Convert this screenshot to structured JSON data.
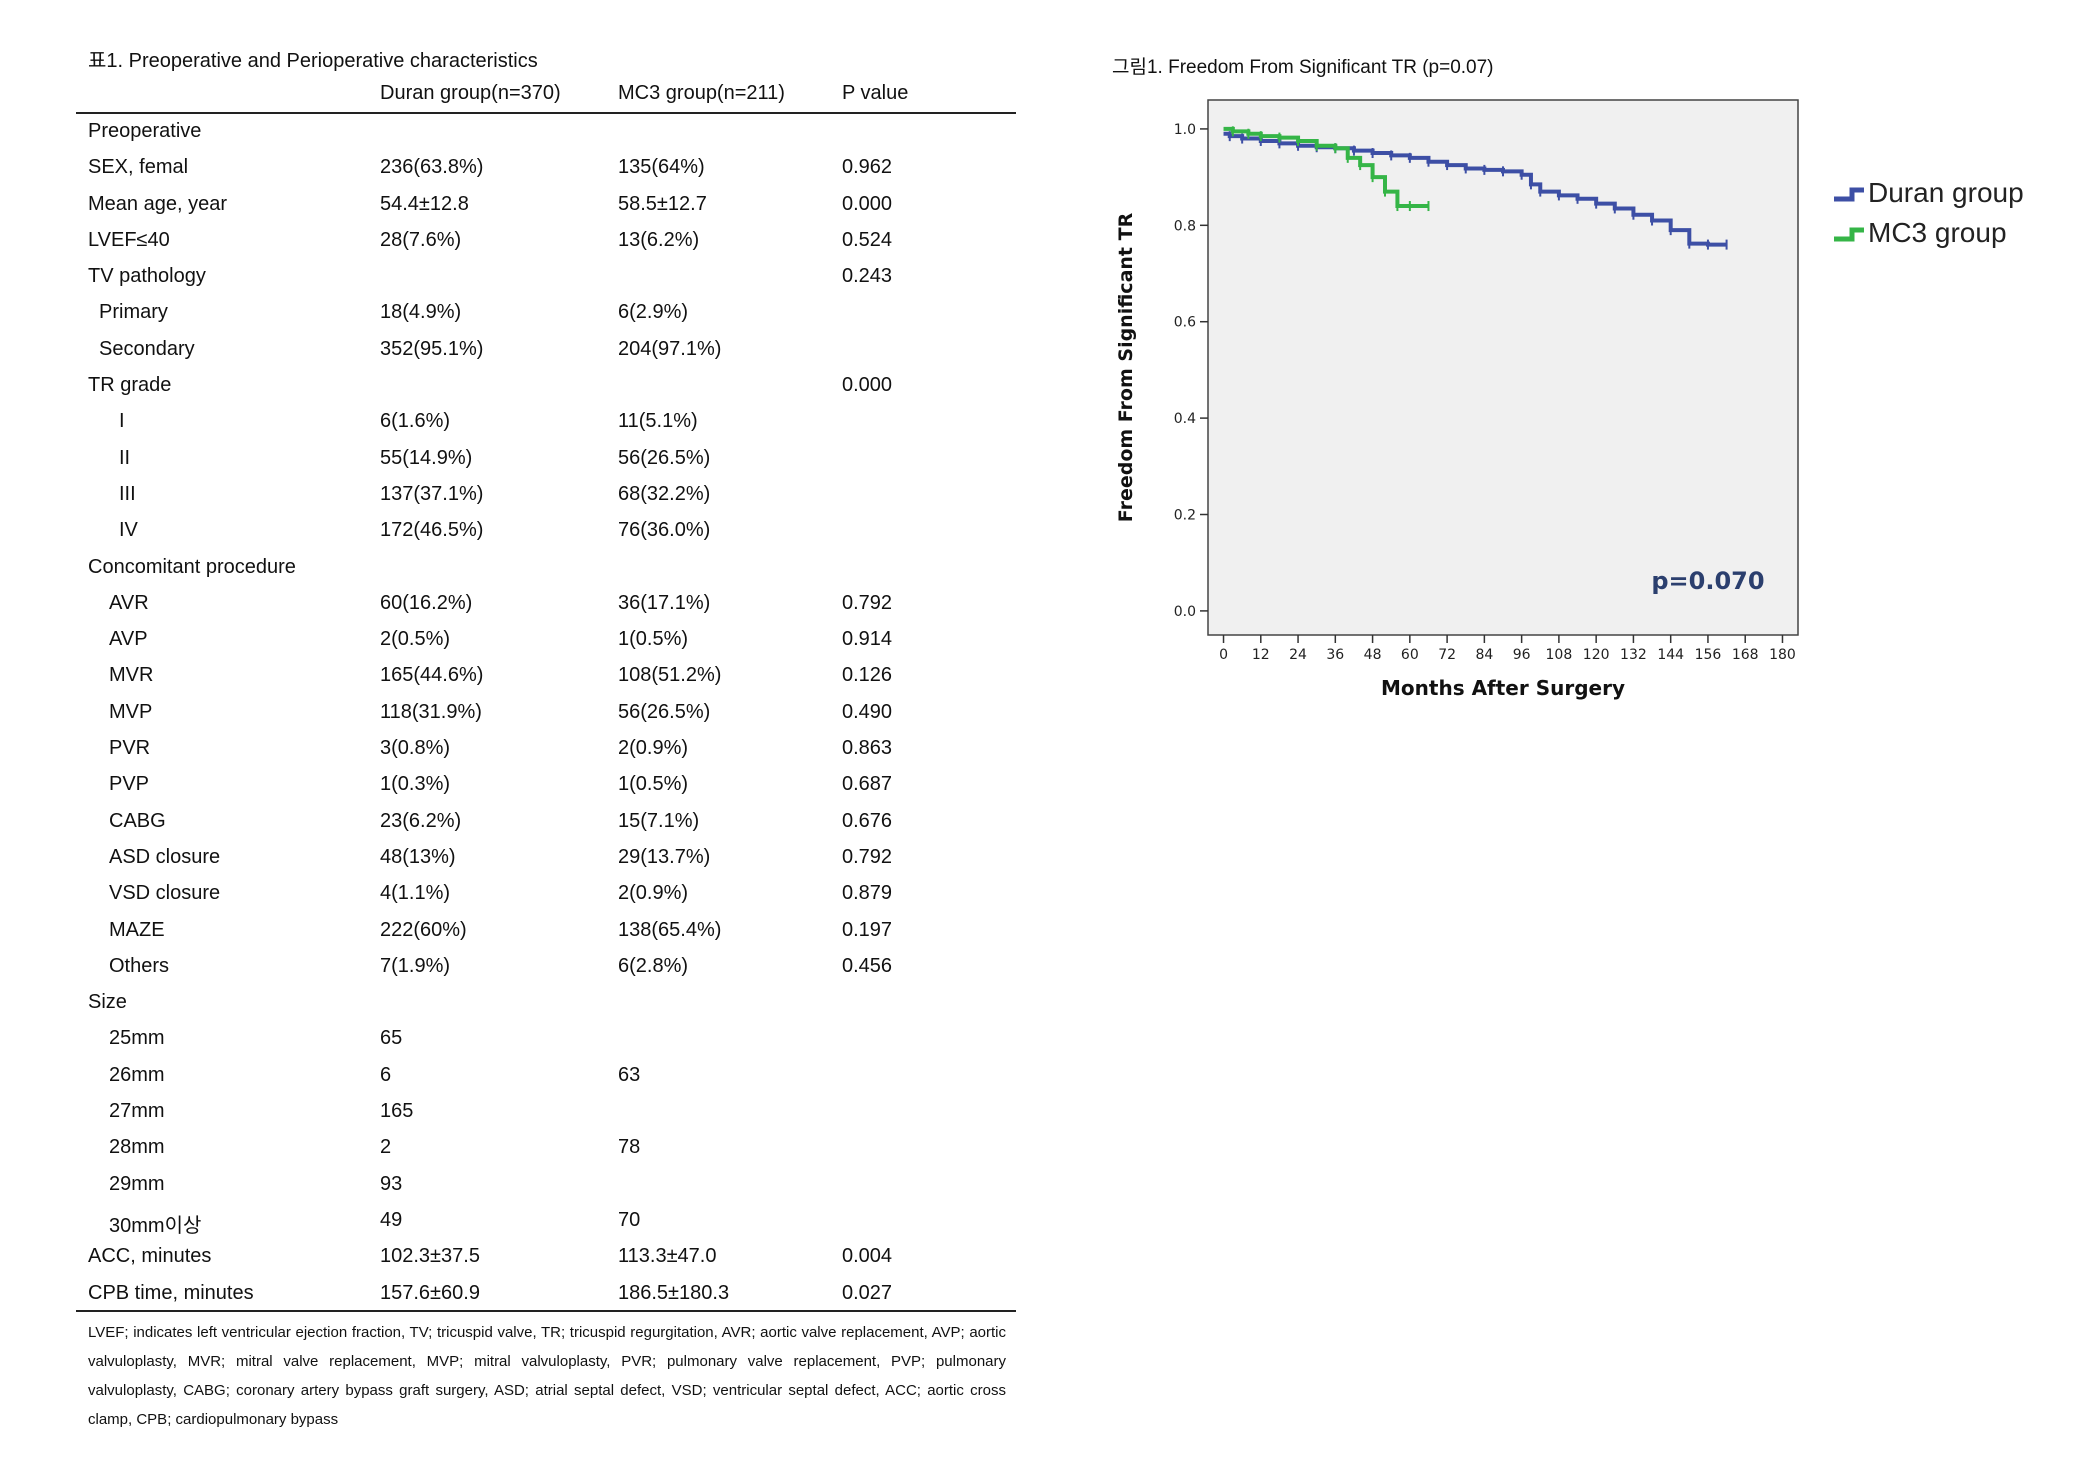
{
  "table": {
    "caption": "표1. Preoperative and Perioperative characteristics",
    "headers": [
      "",
      "Duran group(n=370)",
      "MC3 group(n=211)",
      "P value"
    ],
    "rows": [
      {
        "label": "Preoperative",
        "indent": 0,
        "duran": "",
        "mc3": "",
        "p": ""
      },
      {
        "label": "SEX, femal",
        "indent": 0,
        "duran": "236(63.8%)",
        "mc3": "135(64%)",
        "p": "0.962"
      },
      {
        "label": "Mean age, year",
        "indent": 0,
        "duran": "54.4±12.8",
        "mc3": "58.5±12.7",
        "p": "0.000"
      },
      {
        "label": "LVEF≤40",
        "indent": 0,
        "duran": "28(7.6%)",
        "mc3": "13(6.2%)",
        "p": "0.524"
      },
      {
        "label": "TV pathology",
        "indent": 0,
        "duran": "",
        "mc3": "",
        "p": "0.243"
      },
      {
        "label": "Primary",
        "indent": 1,
        "duran": "18(4.9%)",
        "mc3": "6(2.9%)",
        "p": ""
      },
      {
        "label": "Secondary",
        "indent": 1,
        "duran": "352(95.1%)",
        "mc3": "204(97.1%)",
        "p": ""
      },
      {
        "label": "TR grade",
        "indent": 0,
        "duran": "",
        "mc3": "",
        "p": "0.000"
      },
      {
        "label": "I",
        "indent": 3,
        "duran": "6(1.6%)",
        "mc3": "11(5.1%)",
        "p": ""
      },
      {
        "label": "II",
        "indent": 3,
        "duran": "55(14.9%)",
        "mc3": "56(26.5%)",
        "p": ""
      },
      {
        "label": "III",
        "indent": 3,
        "duran": "137(37.1%)",
        "mc3": "68(32.2%)",
        "p": ""
      },
      {
        "label": "IV",
        "indent": 3,
        "duran": "172(46.5%)",
        "mc3": "76(36.0%)",
        "p": ""
      },
      {
        "label": "Concomitant procedure",
        "indent": 0,
        "duran": "",
        "mc3": "",
        "p": ""
      },
      {
        "label": "AVR",
        "indent": 2,
        "duran": "60(16.2%)",
        "mc3": "36(17.1%)",
        "p": "0.792"
      },
      {
        "label": "AVP",
        "indent": 2,
        "duran": "2(0.5%)",
        "mc3": "1(0.5%)",
        "p": "0.914"
      },
      {
        "label": "MVR",
        "indent": 2,
        "duran": "165(44.6%)",
        "mc3": "108(51.2%)",
        "p": "0.126"
      },
      {
        "label": "MVP",
        "indent": 2,
        "duran": "118(31.9%)",
        "mc3": "56(26.5%)",
        "p": "0.490"
      },
      {
        "label": "PVR",
        "indent": 2,
        "duran": "3(0.8%)",
        "mc3": "2(0.9%)",
        "p": "0.863"
      },
      {
        "label": "PVP",
        "indent": 2,
        "duran": "1(0.3%)",
        "mc3": "1(0.5%)",
        "p": "0.687"
      },
      {
        "label": "CABG",
        "indent": 2,
        "duran": "23(6.2%)",
        "mc3": "15(7.1%)",
        "p": "0.676"
      },
      {
        "label": "ASD closure",
        "indent": 2,
        "duran": "48(13%)",
        "mc3": "29(13.7%)",
        "p": "0.792"
      },
      {
        "label": "VSD closure",
        "indent": 2,
        "duran": "4(1.1%)",
        "mc3": "2(0.9%)",
        "p": "0.879"
      },
      {
        "label": "MAZE",
        "indent": 2,
        "duran": "222(60%)",
        "mc3": "138(65.4%)",
        "p": "0.197"
      },
      {
        "label": "Others",
        "indent": 2,
        "duran": "7(1.9%)",
        "mc3": "6(2.8%)",
        "p": "0.456"
      },
      {
        "label": "Size",
        "indent": 0,
        "duran": "",
        "mc3": "",
        "p": ""
      },
      {
        "label": "25mm",
        "indent": 2,
        "duran": "65",
        "mc3": "",
        "p": ""
      },
      {
        "label": "26mm",
        "indent": 2,
        "duran": "6",
        "mc3": "63",
        "p": ""
      },
      {
        "label": "27mm",
        "indent": 2,
        "duran": "165",
        "mc3": "",
        "p": ""
      },
      {
        "label": "28mm",
        "indent": 2,
        "duran": "2",
        "mc3": "78",
        "p": ""
      },
      {
        "label": "29mm",
        "indent": 2,
        "duran": "93",
        "mc3": "",
        "p": ""
      },
      {
        "label": "30mm이상",
        "indent": 2,
        "duran": "49",
        "mc3": "70",
        "p": ""
      },
      {
        "label": "ACC, minutes",
        "indent": 0,
        "duran": "102.3±37.5",
        "mc3": "113.3±47.0",
        "p": "0.004"
      },
      {
        "label": "CPB time, minutes",
        "indent": 0,
        "duran": "157.6±60.9",
        "mc3": "186.5±180.3",
        "p": "0.027"
      }
    ],
    "footnote": "LVEF; indicates left ventricular ejection fraction, TV; tricuspid valve, TR; tricuspid regurgitation, AVR; aortic valve replacement, AVP; aortic valvuloplasty, MVR; mitral valve replacement, MVP; mitral valvuloplasty, PVR; pulmonary valve replacement, PVP; pulmonary valvuloplasty, CABG; coronary artery bypass graft surgery, ASD; atrial septal defect, VSD; ventricular septal defect, ACC; aortic cross clamp, CPB; cardiopulmonary bypass"
  },
  "chart_data": {
    "type": "line",
    "title": "그림1. Freedom From Significant TR (p=0.07)",
    "xlabel": "Months After Surgery",
    "ylabel": "Freedom From Significant TR",
    "xlim": [
      -5,
      185
    ],
    "ylim": [
      -0.05,
      1.06
    ],
    "x_ticks": [
      0,
      12,
      24,
      36,
      48,
      60,
      72,
      84,
      96,
      108,
      120,
      132,
      144,
      156,
      168,
      180
    ],
    "y_ticks": [
      0.0,
      0.2,
      0.4,
      0.6,
      0.8,
      1.0
    ],
    "y_tick_labels": [
      "0.0",
      "0.2",
      "0.4",
      "0.6",
      "0.8",
      "1.0"
    ],
    "annotation": "p=0.070",
    "legend_position": "right, outside plot",
    "grid": false,
    "background": "#f0f0f0",
    "series": [
      {
        "name": "Duran group",
        "color": "#3d4fa5",
        "x": [
          0,
          2,
          6,
          12,
          18,
          24,
          30,
          36,
          42,
          48,
          54,
          60,
          66,
          72,
          78,
          84,
          90,
          96,
          99,
          102,
          108,
          114,
          120,
          126,
          132,
          138,
          144,
          150,
          156,
          162
        ],
        "y": [
          0.99,
          0.985,
          0.98,
          0.975,
          0.97,
          0.965,
          0.962,
          0.96,
          0.955,
          0.95,
          0.945,
          0.94,
          0.932,
          0.925,
          0.918,
          0.915,
          0.912,
          0.905,
          0.885,
          0.87,
          0.862,
          0.855,
          0.845,
          0.835,
          0.822,
          0.81,
          0.79,
          0.762,
          0.76,
          0.76
        ]
      },
      {
        "name": "MC3 group",
        "color": "#35b547",
        "x": [
          0,
          3,
          8,
          12,
          18,
          24,
          30,
          36,
          40,
          44,
          48,
          52,
          56,
          60,
          66
        ],
        "y": [
          1.0,
          0.995,
          0.99,
          0.985,
          0.982,
          0.975,
          0.965,
          0.96,
          0.94,
          0.925,
          0.9,
          0.87,
          0.84,
          0.84,
          0.84
        ]
      }
    ]
  }
}
